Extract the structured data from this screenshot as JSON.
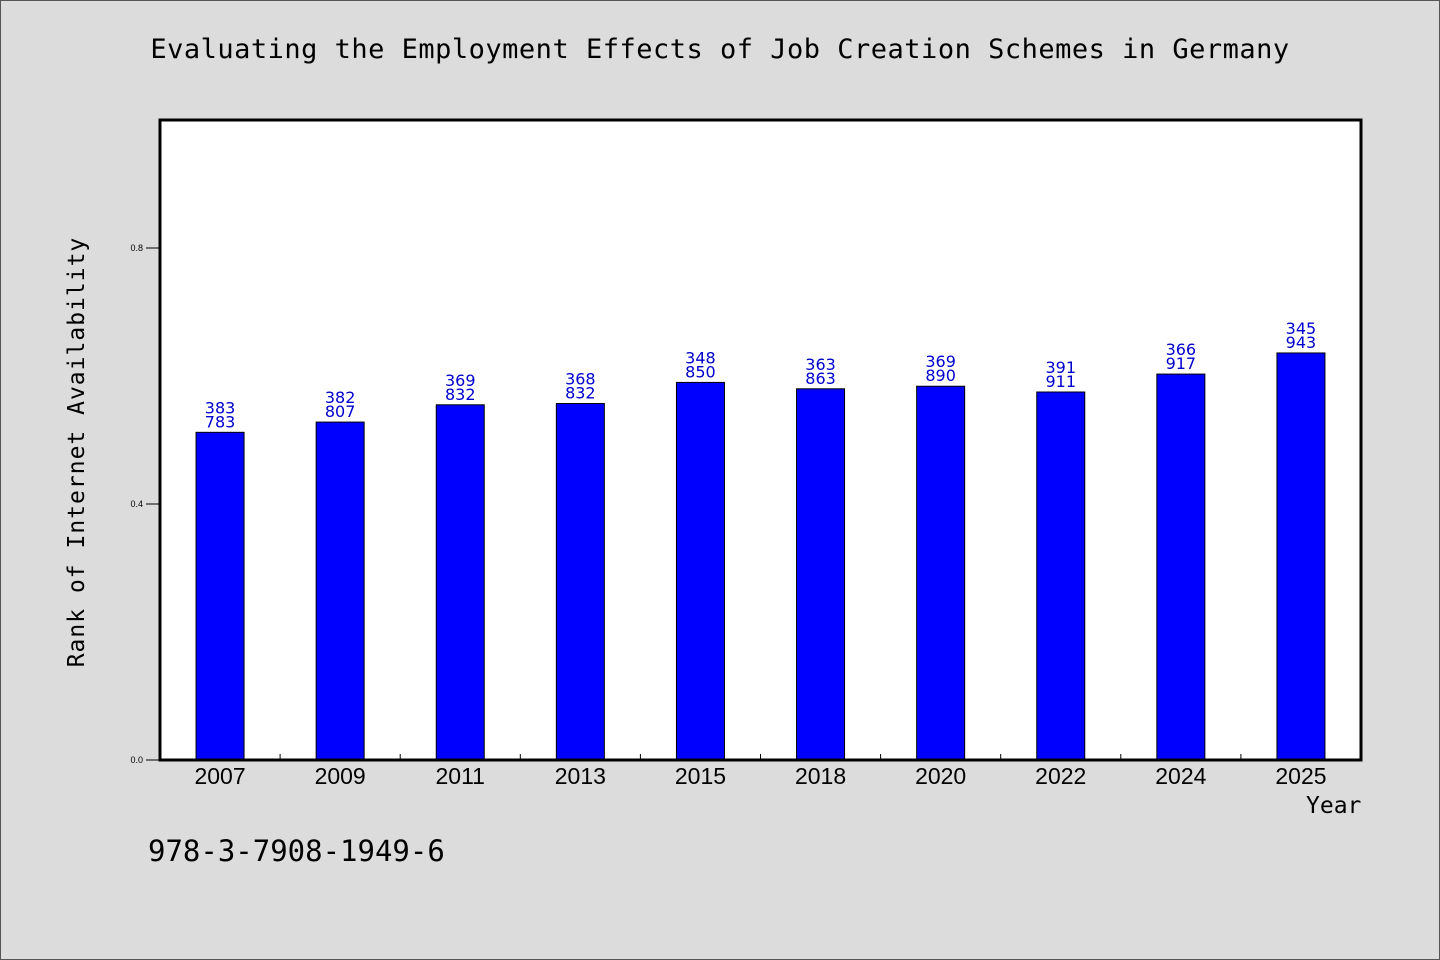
{
  "chart_data": {
    "type": "bar",
    "title": "Evaluating the Employment Effects of Job Creation Schemes in Germany",
    "xlabel": "Year",
    "ylabel": "Rank of Internet Availability",
    "categories": [
      "2007",
      "2009",
      "2011",
      "2013",
      "2015",
      "2018",
      "2020",
      "2022",
      "2024",
      "2025"
    ],
    "values": [
      0.512,
      0.528,
      0.555,
      0.557,
      0.59,
      0.58,
      0.584,
      0.575,
      0.603,
      0.636
    ],
    "data_labels": [
      [
        "383",
        "783"
      ],
      [
        "382",
        "807"
      ],
      [
        "369",
        "832"
      ],
      [
        "368",
        "832"
      ],
      [
        "348",
        "850"
      ],
      [
        "363",
        "863"
      ],
      [
        "369",
        "890"
      ],
      [
        "391",
        "911"
      ],
      [
        "366",
        "917"
      ],
      [
        "345",
        "943"
      ]
    ],
    "yticks": [
      0.0,
      0.4,
      0.8
    ],
    "ytick_labels": [
      "0.0",
      "0.4",
      "0.8"
    ],
    "ylim": [
      0.0,
      1.0
    ],
    "grid": false,
    "bar_color": "#0000ff",
    "label_color": "#0000cc"
  },
  "footer": {
    "isbn": "978-3-7908-1949-6"
  }
}
